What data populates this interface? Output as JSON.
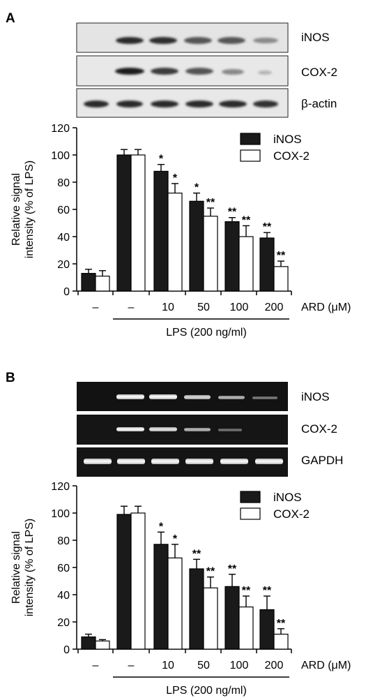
{
  "panels": [
    {
      "letter": "A",
      "gel_type": "western",
      "gel_labels": [
        "iNOS",
        "COX-2",
        "β-actin"
      ],
      "chart_data": {
        "type": "bar",
        "ylabel": [
          "Relative signal",
          "intensity (% of LPS)"
        ],
        "ylim": [
          0,
          120
        ],
        "yticks": [
          0,
          20,
          40,
          60,
          80,
          100,
          120
        ],
        "categories": [
          "–",
          "–",
          "10",
          "50",
          "100",
          "200"
        ],
        "category_axis_label": "ARD (μM)",
        "group_label": "LPS (200 ng/ml)",
        "legend_position": "top-right",
        "series": [
          {
            "name": "iNOS",
            "fill": "#1a1a1a",
            "values": [
              13,
              100,
              88,
              66,
              51,
              39
            ],
            "errors": [
              3,
              4,
              5,
              6,
              3,
              4
            ],
            "sig": [
              "",
              "",
              "*",
              "*",
              "**",
              "**"
            ]
          },
          {
            "name": "COX-2",
            "fill": "#ffffff",
            "values": [
              11,
              100,
              72,
              55,
              40,
              18
            ],
            "errors": [
              4,
              4,
              7,
              6,
              8,
              4
            ],
            "sig": [
              "",
              "",
              "*",
              "**",
              "**",
              "**"
            ]
          }
        ]
      }
    },
    {
      "letter": "B",
      "gel_type": "pcr",
      "gel_labels": [
        "iNOS",
        "COX-2",
        "GAPDH"
      ],
      "chart_data": {
        "type": "bar",
        "ylabel": [
          "Relative signal",
          "intensity (% of LPS)"
        ],
        "ylim": [
          0,
          120
        ],
        "yticks": [
          0,
          20,
          40,
          60,
          80,
          100,
          120
        ],
        "categories": [
          "–",
          "–",
          "10",
          "50",
          "100",
          "200"
        ],
        "category_axis_label": "ARD (μM)",
        "group_label": "LPS (200 ng/ml)",
        "legend_position": "top-right",
        "series": [
          {
            "name": "iNOS",
            "fill": "#1a1a1a",
            "values": [
              9,
              99,
              77,
              59,
              46,
              29
            ],
            "errors": [
              2,
              6,
              9,
              7,
              9,
              10
            ],
            "sig": [
              "",
              "",
              "*",
              "**",
              "**",
              "**"
            ]
          },
          {
            "name": "COX-2",
            "fill": "#ffffff",
            "values": [
              6,
              100,
              67,
              45,
              31,
              11
            ],
            "errors": [
              1,
              5,
              10,
              8,
              8,
              4
            ],
            "sig": [
              "",
              "",
              "*",
              "**",
              "**",
              "**"
            ]
          }
        ]
      }
    }
  ]
}
